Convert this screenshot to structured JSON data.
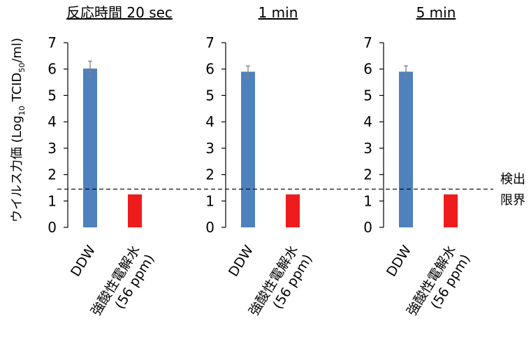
{
  "ylabel": {
    "main": "ウイルス力価 (Log",
    "sub1": "10",
    "mid": " TCID",
    "sub2": "50",
    "end": "/ml)"
  },
  "detection_limit_label": [
    "検出",
    "限界"
  ],
  "colors": {
    "ddw": "#4f81bd",
    "acidic": "#ee1c1c",
    "errorbar": "#7f7f7f",
    "axis": "#000000"
  },
  "chart_data": [
    {
      "type": "bar",
      "title": "反応時間 20 sec",
      "categories": [
        "DDW",
        [
          "強酸性電解水",
          "(56 ppm)"
        ]
      ],
      "values": [
        6.02,
        1.25
      ],
      "errors": [
        0.28,
        0
      ],
      "detection_limit": 1.45,
      "ylim": [
        0,
        7
      ],
      "yticks": [
        "0",
        "1",
        "2",
        "3",
        "4",
        "5",
        "6",
        "7"
      ],
      "grid": false
    },
    {
      "type": "bar",
      "title": "1 min",
      "categories": [
        "DDW",
        [
          "強酸性電解水",
          "(56 ppm)"
        ]
      ],
      "values": [
        5.9,
        1.25
      ],
      "errors": [
        0.22,
        0
      ],
      "detection_limit": 1.45,
      "ylim": [
        0,
        7
      ],
      "yticks": [
        "0",
        "1",
        "2",
        "3",
        "4",
        "5",
        "6",
        "7"
      ],
      "grid": false
    },
    {
      "type": "bar",
      "title": "5 min",
      "categories": [
        "DDW",
        [
          "強酸性電解水",
          "(56 ppm)"
        ]
      ],
      "values": [
        5.9,
        1.25
      ],
      "errors": [
        0.22,
        0
      ],
      "detection_limit": 1.45,
      "ylim": [
        0,
        7
      ],
      "yticks": [
        "0",
        "1",
        "2",
        "3",
        "4",
        "5",
        "6",
        "7"
      ],
      "grid": false
    }
  ]
}
